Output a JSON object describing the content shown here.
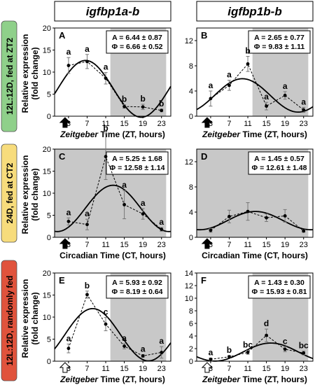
{
  "column_headers": [
    "igfbp1a-b",
    "igfbp1b-b"
  ],
  "row_labels": [
    {
      "text": "12L:12D, fed at ZT2",
      "color": "#8fd08a"
    },
    {
      "text": "24D, fed at CT2",
      "color": "#f7dc7c"
    },
    {
      "text": "12L:12D, randomly fed",
      "color": "#e0533c"
    }
  ],
  "ylabel_lines": [
    "Relative expression",
    "(fold change)"
  ],
  "colors": {
    "shade": "#c8c8c8",
    "curve": "#000000",
    "arrow_filled": "#000000",
    "arrow_open": "#ffffff"
  },
  "chart_data": [
    {
      "type": "line",
      "panel": "A",
      "row": 0,
      "col": 0,
      "xlabel_italic": "Zeitgeber",
      "xlabel_rest": " Time (ZT, hours)",
      "xticks": [
        3,
        7,
        11,
        15,
        19,
        23
      ],
      "xlim": [
        0,
        25
      ],
      "ylim": [
        0,
        20
      ],
      "yticks": [
        0,
        5,
        10,
        15,
        20
      ],
      "shade": [
        12,
        24
      ],
      "arrow": "filled",
      "stats": [
        "A = 6.44 ± 0.87",
        "Φ = 6.66 ± 0.52"
      ],
      "fit": {
        "mesor": 6.2,
        "amplitude": 6.44,
        "phase": 6.66
      },
      "series": [
        {
          "x": [
            3,
            7,
            11,
            15,
            19,
            23
          ],
          "y": [
            11.5,
            12.4,
            8.6,
            2.2,
            2.1,
            1.3
          ],
          "err": [
            1.8,
            1.6,
            1.3,
            0.4,
            0.6,
            0.3
          ],
          "labels": [
            "a",
            "a",
            "a",
            "b",
            "b",
            "b"
          ]
        }
      ]
    },
    {
      "type": "line",
      "panel": "B",
      "row": 0,
      "col": 1,
      "xlabel_italic": "Zeitgeber",
      "xlabel_rest": " Time (ZT, hours)",
      "xticks": [
        3,
        7,
        11,
        15,
        19,
        23
      ],
      "xlim": [
        0,
        25
      ],
      "ylim": [
        0,
        14
      ],
      "yticks": [
        0,
        4,
        8,
        12
      ],
      "shade": [
        12,
        24
      ],
      "arrow": "filled",
      "stats": [
        "A = 2.65 ± 0.77",
        "Φ = 9.83 ± 1.11"
      ],
      "fit": {
        "mesor": 3.3,
        "amplitude": 2.65,
        "phase": 9.83
      },
      "series": [
        {
          "x": [
            3,
            7,
            11,
            15,
            19,
            23
          ],
          "y": [
            2.8,
            4.9,
            8.3,
            1.6,
            3.3,
            1.0
          ],
          "err": [
            1.2,
            0.8,
            1.2,
            0.6,
            0.6,
            0.4
          ],
          "labels": [
            "a",
            "a",
            "b",
            "a",
            "a",
            "a"
          ]
        }
      ]
    },
    {
      "type": "line",
      "panel": "C",
      "row": 1,
      "col": 0,
      "xlabel_italic": "",
      "xlabel_rest": "Circadian Time (CT, hours)",
      "xticks": [
        3,
        7,
        11,
        15,
        19,
        23
      ],
      "xlim": [
        0,
        25
      ],
      "ylim": [
        0,
        20
      ],
      "yticks": [
        0,
        5,
        10,
        15,
        20
      ],
      "shade": [
        0,
        24
      ],
      "arrow": "filled",
      "stats": [
        "A = 5.25 ± 1.68",
        "Φ = 12.58 ± 1.14"
      ],
      "fit": {
        "mesor": 6.55,
        "amplitude": 5.25,
        "phase": 12.58
      },
      "series": [
        {
          "x": [
            3,
            7,
            11,
            15,
            19,
            23
          ],
          "y": [
            3.6,
            2.9,
            18.3,
            7.4,
            5.3,
            1.8
          ],
          "err": [
            0.8,
            1.2,
            5.2,
            3.2,
            1.2,
            0.4
          ],
          "labels": [
            "a",
            "a",
            "b",
            "a",
            "a",
            "a"
          ]
        }
      ]
    },
    {
      "type": "line",
      "panel": "D",
      "row": 1,
      "col": 1,
      "xlabel_italic": "",
      "xlabel_rest": "Circadian Time (CT, hours)",
      "xticks": [
        3,
        7,
        11,
        15,
        19,
        23
      ],
      "xlim": [
        0,
        25
      ],
      "ylim": [
        0,
        14
      ],
      "yticks": [
        0,
        4,
        8,
        12
      ],
      "shade": [
        0,
        24
      ],
      "arrow": "filled",
      "stats": [
        "A = 1.45 ± 0.57",
        "Φ = 12.61 ± 1.48"
      ],
      "fit": {
        "mesor": 2.65,
        "amplitude": 1.45,
        "phase": 12.61
      },
      "series": [
        {
          "x": [
            3,
            7,
            11,
            15,
            19,
            23
          ],
          "y": [
            1.1,
            3.3,
            4.1,
            3.1,
            3.4,
            1.0
          ],
          "err": [
            0.3,
            1.0,
            1.4,
            0.6,
            1.0,
            0.2
          ],
          "labels": [
            "",
            "",
            "",
            "",
            "",
            ""
          ]
        }
      ]
    },
    {
      "type": "line",
      "panel": "E",
      "row": 2,
      "col": 0,
      "xlabel_italic": "Zeitgeber",
      "xlabel_rest": " Time (ZT, hours)",
      "xticks": [
        3,
        7,
        11,
        15,
        19,
        23
      ],
      "xlim": [
        0,
        25
      ],
      "ylim": [
        0,
        20
      ],
      "yticks": [
        0,
        5,
        10,
        15,
        20
      ],
      "shade": [
        12,
        24
      ],
      "arrow": "open",
      "stats": [
        "A = 5.93 ± 0.92",
        "Φ = 8.19 ± 0.64"
      ],
      "fit": {
        "mesor": 6.0,
        "amplitude": 5.93,
        "phase": 8.19
      },
      "series": [
        {
          "x": [
            3,
            7,
            11,
            15,
            19,
            23
          ],
          "y": [
            2.9,
            15.1,
            8.4,
            3.4,
            1.2,
            2.0
          ],
          "err": [
            1.0,
            0.8,
            1.5,
            0.6,
            0.3,
            1.3
          ],
          "labels": [
            "a",
            "b",
            "c",
            "a",
            "a",
            "a"
          ]
        }
      ]
    },
    {
      "type": "line",
      "panel": "F",
      "row": 2,
      "col": 1,
      "xlabel_italic": "Zeitgeber",
      "xlabel_rest": " Time (ZT, hours)",
      "xticks": [
        3,
        7,
        11,
        15,
        19,
        23
      ],
      "xlim": [
        0,
        25
      ],
      "ylim": [
        0,
        14
      ],
      "yticks": [
        0,
        2,
        4,
        6,
        8,
        10,
        12,
        14
      ],
      "shade": [
        12,
        24
      ],
      "arrow": "open",
      "stats": [
        "A = 1.43 ± 0.30",
        "Φ = 15.93 ± 0.81"
      ],
      "fit": {
        "mesor": 1.45,
        "amplitude": 1.43,
        "phase": 15.93
      },
      "series": [
        {
          "x": [
            3,
            7,
            11,
            15,
            19,
            23
          ],
          "y": [
            0.3,
            0.7,
            1.4,
            4.1,
            1.9,
            1.3
          ],
          "err": [
            0.2,
            0.2,
            0.3,
            1.0,
            0.4,
            0.3
          ],
          "labels": [
            "a",
            "b",
            "bc",
            "d",
            "c",
            "bc"
          ]
        }
      ]
    }
  ]
}
